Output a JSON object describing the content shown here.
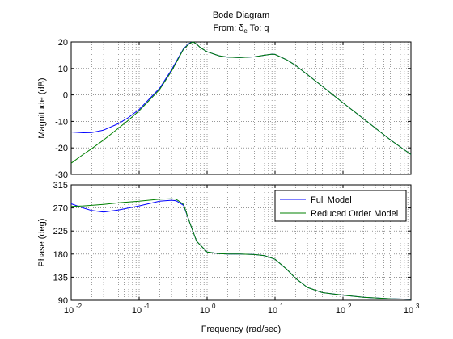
{
  "chart_data": [
    {
      "type": "line",
      "title": "Bode Diagram",
      "subtitle_parts": {
        "from": "From: δ",
        "sub": "e",
        "to": "  To: q"
      },
      "xlabel": "Frequency  (rad/sec)",
      "ylabel": "Magnitude (dB)",
      "xscale": "log",
      "xlim": [
        0.01,
        1000
      ],
      "ylim": [
        -30,
        20
      ],
      "yticks": [
        "-30",
        "-20",
        "-10",
        "0",
        "10",
        "20"
      ],
      "xticks": [
        "10",
        "10",
        "10",
        "10",
        "10",
        "10"
      ],
      "xtick_exponents": [
        "-2",
        "-1",
        "0",
        "1",
        "2",
        "3"
      ],
      "grid": true,
      "series": [
        {
          "color": "#0000ff",
          "x": [
            0.01,
            0.015,
            0.02,
            0.03,
            0.05,
            0.07,
            0.1,
            0.2,
            0.3,
            0.45,
            0.55,
            0.62,
            0.7,
            0.8,
            1.0,
            1.5,
            2.0,
            3.0,
            5.0,
            7.0,
            9.0,
            10.0,
            15.0,
            20.0,
            50.0,
            100.0,
            200.0,
            500.0,
            1000.0
          ],
          "y": [
            -14,
            -14.3,
            -14.2,
            -13.3,
            -10.8,
            -8.5,
            -5.5,
            2.5,
            9.5,
            17.5,
            19.5,
            20,
            19.2,
            17.8,
            16.3,
            14.8,
            14.3,
            14.1,
            14.4,
            15.0,
            15.4,
            15.3,
            13.2,
            11.2,
            3.2,
            -3.0,
            -9.0,
            -17.0,
            -22.5
          ]
        },
        {
          "color": "#008000",
          "x": [
            0.01,
            0.015,
            0.02,
            0.03,
            0.05,
            0.07,
            0.1,
            0.2,
            0.3,
            0.45,
            0.55,
            0.62,
            0.7,
            0.8,
            1.0,
            1.5,
            2.0,
            3.0,
            5.0,
            7.0,
            9.0,
            10.0,
            15.0,
            20.0,
            50.0,
            100.0,
            200.0,
            500.0,
            1000.0
          ],
          "y": [
            -25.8,
            -22.5,
            -20.3,
            -17.0,
            -12.5,
            -9.5,
            -6.0,
            2.0,
            9.0,
            17.3,
            19.4,
            20,
            19.2,
            17.8,
            16.3,
            14.8,
            14.3,
            14.1,
            14.4,
            15.0,
            15.4,
            15.3,
            13.2,
            11.2,
            3.2,
            -3.0,
            -9.0,
            -17.0,
            -22.5
          ]
        }
      ]
    },
    {
      "type": "line",
      "title": "",
      "xlabel": "Frequency  (rad/sec)",
      "ylabel": "Phase (deg)",
      "xscale": "log",
      "xlim": [
        0.01,
        1000
      ],
      "ylim": [
        90,
        315
      ],
      "yticks": [
        "90",
        "135",
        "180",
        "225",
        "270",
        "315"
      ],
      "grid": true,
      "legend": {
        "position": "top-right",
        "entries": [
          "Full Model",
          "Reduced Order Model"
        ]
      },
      "series": [
        {
          "name": "Full Model",
          "color": "#0000ff",
          "x": [
            0.01,
            0.015,
            0.02,
            0.03,
            0.05,
            0.1,
            0.2,
            0.3,
            0.35,
            0.45,
            0.55,
            0.7,
            1.0,
            1.5,
            2.0,
            3.0,
            5.0,
            7.0,
            10.0,
            15.0,
            20.0,
            30.0,
            50.0,
            100.0,
            200.0,
            500.0,
            1000.0
          ],
          "y": [
            278,
            270,
            265,
            262,
            266,
            274,
            283,
            285,
            284,
            275,
            243,
            205,
            184,
            181,
            180,
            180,
            179,
            177,
            170,
            150,
            133,
            115,
            105,
            100,
            96,
            93,
            92
          ]
        },
        {
          "name": "Reduced Order Model",
          "color": "#008000",
          "x": [
            0.01,
            0.015,
            0.02,
            0.03,
            0.05,
            0.1,
            0.2,
            0.3,
            0.35,
            0.45,
            0.55,
            0.7,
            1.0,
            1.5,
            2.0,
            3.0,
            5.0,
            7.0,
            10.0,
            15.0,
            20.0,
            30.0,
            50.0,
            100.0,
            200.0,
            500.0,
            1000.0
          ],
          "y": [
            273,
            274,
            275,
            277,
            280,
            283,
            287,
            288,
            287,
            277,
            243,
            205,
            184,
            181,
            180,
            180,
            179,
            177,
            170,
            150,
            133,
            115,
            105,
            100,
            96,
            93,
            92
          ]
        }
      ]
    }
  ]
}
